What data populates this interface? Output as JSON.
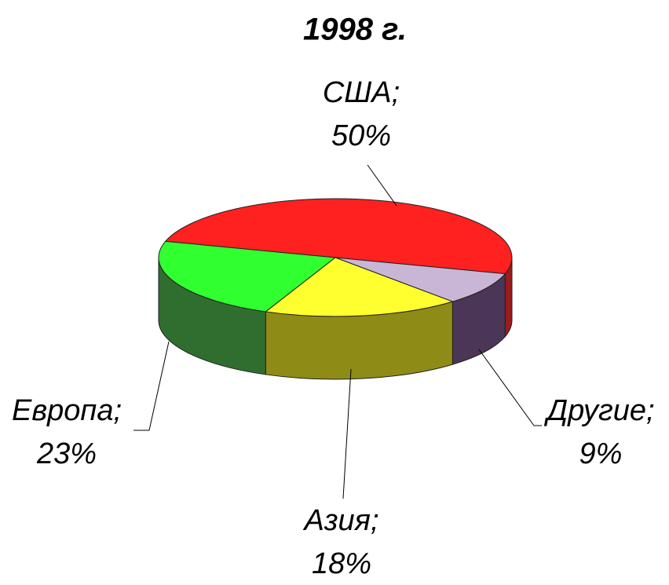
{
  "chart_data": {
    "type": "pie",
    "title": "1998 г.",
    "categories": [
      "США;",
      "Другие;",
      "Азия;",
      "Европа;"
    ],
    "values": [
      50,
      9,
      18,
      23
    ],
    "value_labels": [
      "50%",
      "9%",
      "18%",
      "23%"
    ],
    "colors": [
      "#ff2020",
      "#c9b6d6",
      "#ffff30",
      "#30ff30"
    ],
    "side_colors": [
      "#9a1c1c",
      "#4c3657",
      "#8e8c16",
      "#2f6e2f"
    ]
  }
}
